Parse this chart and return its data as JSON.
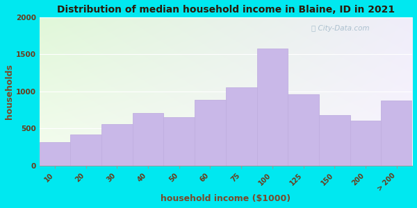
{
  "title": "Distribution of median household income in Blaine, ID in 2021",
  "xlabel": "household income ($1000)",
  "ylabel": "households",
  "bar_labels": [
    "10",
    "20",
    "30",
    "40",
    "50",
    "60",
    "75",
    "100",
    "125",
    "150",
    "200",
    "> 200"
  ],
  "bar_values": [
    320,
    420,
    560,
    710,
    650,
    890,
    1050,
    1580,
    960,
    680,
    610,
    880
  ],
  "bar_color": "#c9b8e8",
  "bar_edge_color": "#c0aee0",
  "ylim": [
    0,
    2000
  ],
  "yticks": [
    0,
    500,
    1000,
    1500,
    2000
  ],
  "background_outer": "#00e8f0",
  "title_color": "#2a1a0a",
  "axis_label_color": "#7a4a2a",
  "tick_label_color": "#6a3a1a",
  "watermark_text": "City-Data.com",
  "watermark_color": "#a0b8c8",
  "bg_topleft": [
    0.88,
    0.97,
    0.85
  ],
  "bg_topright": [
    0.94,
    0.93,
    0.98
  ],
  "bg_bottomleft": [
    0.96,
    0.99,
    0.94
  ],
  "bg_bottomright": [
    0.98,
    0.96,
    1.0
  ]
}
